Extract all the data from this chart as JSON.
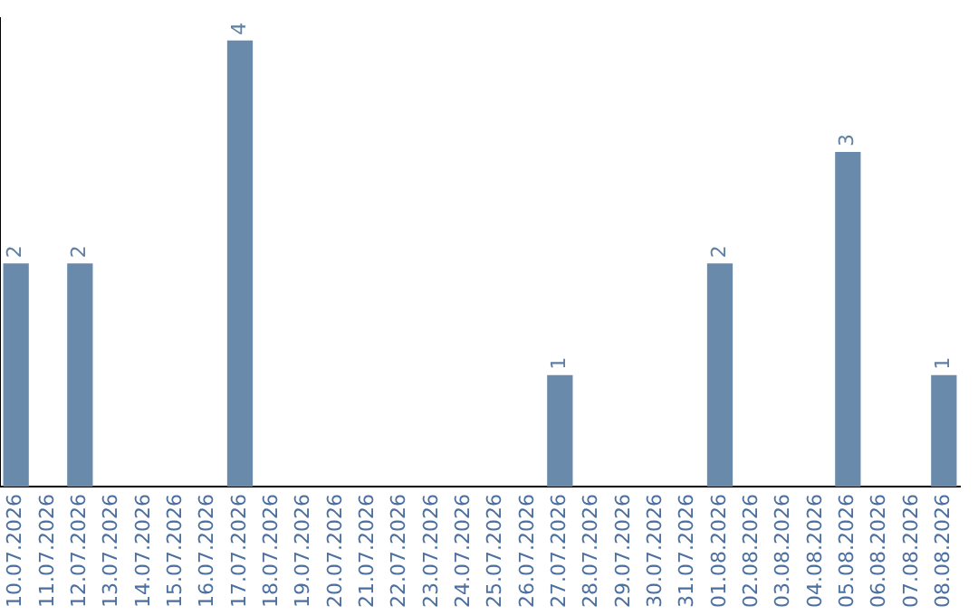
{
  "chart_data": {
    "type": "bar",
    "categories": [
      "10.07.2026",
      "11.07.2026",
      "12.07.2026",
      "13.07.2026",
      "14.07.2026",
      "15.07.2026",
      "16.07.2026",
      "17.07.2026",
      "18.07.2026",
      "19.07.2026",
      "20.07.2026",
      "21.07.2026",
      "22.07.2026",
      "23.07.2026",
      "24.07.2026",
      "25.07.2026",
      "26.07.2026",
      "27.07.2026",
      "28.07.2026",
      "29.07.2026",
      "30.07.2026",
      "31.07.2026",
      "01.08.2026",
      "02.08.2026",
      "03.08.2026",
      "04.08.2026",
      "05.08.2026",
      "06.08.2026",
      "07.08.2026",
      "08.08.2026"
    ],
    "values": [
      2,
      0,
      2,
      0,
      0,
      0,
      0,
      4,
      0,
      0,
      0,
      0,
      0,
      0,
      0,
      0,
      0,
      1,
      0,
      0,
      0,
      0,
      2,
      0,
      0,
      0,
      3,
      0,
      0,
      1
    ],
    "value_labels": [
      "2",
      null,
      "2",
      null,
      null,
      null,
      null,
      "4",
      null,
      null,
      null,
      null,
      null,
      null,
      null,
      null,
      null,
      "1",
      null,
      null,
      null,
      null,
      "2",
      null,
      null,
      null,
      "3",
      null,
      null,
      "1"
    ],
    "color": "#6a8aab",
    "ylim": [
      0,
      4.2
    ],
    "tick_labels": "x",
    "grid": false,
    "legend": false
  }
}
